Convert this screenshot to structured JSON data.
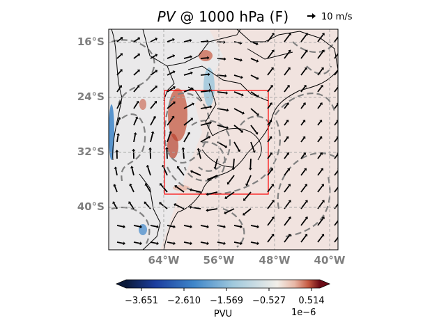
{
  "title": {
    "prefix": "PV",
    "suffix": " @ 1000 hPa (F)"
  },
  "reference_vector": {
    "label": "10 m/s"
  },
  "lat_labels": [
    "16°S",
    "24°S",
    "32°S",
    "40°S"
  ],
  "lon_labels": [
    "64°W",
    "56°W",
    "48°W",
    "40°W"
  ],
  "colorbar": {
    "ticks": [
      "−3.651",
      "−2.610",
      "−1.569",
      "−0.527",
      "0.514"
    ],
    "label": "PVU",
    "exponent": "1e−6",
    "colors": [
      "#0b1a3a",
      "#1b3d9e",
      "#3f86c9",
      "#9fc8dd",
      "#f2efe9",
      "#e8b7a6",
      "#c65a42",
      "#6b0b16"
    ]
  },
  "map": {
    "extent_lon": [
      -72,
      -39
    ],
    "extent_lat": [
      -46,
      -12
    ],
    "region_box": {
      "lon": [
        -64,
        -49
      ],
      "lat": [
        -39,
        -24
      ],
      "color": "#ff0000"
    },
    "contour_color": "#808080",
    "grid": "dashed"
  }
}
